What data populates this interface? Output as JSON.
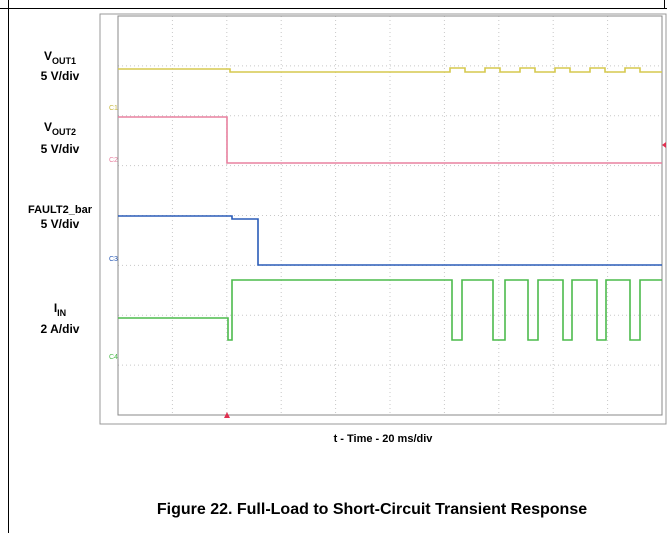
{
  "channels": [
    {
      "name": "V",
      "subscript": "OUT1",
      "scale": "5 V/div",
      "marker": "C1"
    },
    {
      "name": "V",
      "subscript": "OUT2",
      "scale": "5 V/div",
      "marker": "C2"
    },
    {
      "name": "FAULT2_bar",
      "scale": "5 V/div",
      "marker": "C3"
    },
    {
      "name": "I",
      "subscript": "IN",
      "scale": "2 A/div",
      "marker": "C4"
    }
  ],
  "x_axis_label": "t - Time - 20 ms/div",
  "caption": "Figure 22. Full-Load to Short-Circuit Transient Response"
}
